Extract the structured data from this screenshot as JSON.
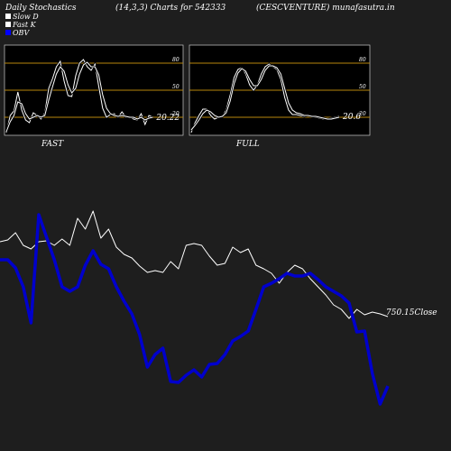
{
  "header": {
    "left": "Daily Stochastics",
    "center": "(14,3,3) Charts for 542333",
    "right": "(CESCVENTURE) munafasutra.in"
  },
  "legend": [
    {
      "label": "Slow  D",
      "color": "#ffffff"
    },
    {
      "label": "Fast K",
      "color": "#ffffff"
    },
    {
      "label": "OBV",
      "color": "#0000ff"
    }
  ],
  "colors": {
    "background": "#1e1e1e",
    "panel_bg": "#000000",
    "band_lines": "#b8860b",
    "price_line": "#ffffff",
    "obv_line": "#0000cc"
  },
  "chart_data": [
    {
      "type": "line",
      "panel_label": "FAST",
      "ylim": [
        0,
        100
      ],
      "bands": [
        20,
        50,
        80
      ],
      "band_labels": [
        "80",
        "50",
        "20"
      ],
      "last_value_label": "20.22",
      "series": [
        {
          "values": [
            3,
            22,
            27,
            48,
            28,
            17,
            14,
            25,
            22,
            18,
            25,
            52,
            63,
            76,
            82,
            60,
            44,
            43,
            66,
            80,
            84,
            76,
            72,
            79,
            54,
            30,
            20,
            23,
            24,
            20,
            26,
            20,
            21,
            18,
            17,
            24,
            12,
            22,
            20
          ]
        },
        {
          "values": [
            4,
            15,
            22,
            37,
            35,
            24,
            18,
            20,
            22,
            20,
            22,
            39,
            54,
            68,
            76,
            71,
            56,
            47,
            52,
            68,
            78,
            81,
            76,
            76,
            67,
            45,
            30,
            24,
            22,
            21,
            22,
            21,
            20,
            20,
            18,
            20,
            17,
            19,
            20
          ]
        }
      ]
    },
    {
      "type": "line",
      "panel_label": "FULL",
      "ylim": [
        0,
        100
      ],
      "bands": [
        20,
        50,
        80
      ],
      "band_labels": [
        "80",
        "50",
        "20"
      ],
      "last_value_label": "20.6",
      "series": [
        {
          "values": [
            3,
            14,
            22,
            29,
            29,
            22,
            18,
            20,
            21,
            28,
            45,
            64,
            73,
            75,
            68,
            56,
            50,
            56,
            68,
            76,
            79,
            76,
            73,
            62,
            42,
            28,
            23,
            23,
            22,
            21,
            22,
            21,
            20,
            19,
            18,
            18,
            19,
            20,
            21
          ]
        },
        {
          "values": [
            6,
            11,
            17,
            24,
            28,
            26,
            22,
            20,
            21,
            25,
            38,
            57,
            69,
            74,
            71,
            62,
            55,
            55,
            62,
            72,
            77,
            77,
            75,
            68,
            52,
            36,
            28,
            25,
            24,
            22,
            22,
            21,
            21,
            20,
            19,
            18,
            18,
            19,
            20
          ]
        }
      ]
    },
    {
      "type": "line",
      "ylim": [
        0,
        500
      ],
      "series": [
        {
          "name": "Close",
          "values": [
            268,
            266,
            258,
            272,
            276,
            268,
            267,
            272,
            265,
            272,
            242,
            254,
            234,
            264,
            254,
            274,
            282,
            286,
            295,
            302,
            300,
            302,
            290,
            298,
            272,
            270,
            272,
            284,
            294,
            292,
            274,
            280,
            276,
            294,
            298,
            303,
            314,
            302,
            294,
            298,
            309,
            318,
            327,
            338,
            343,
            353,
            343,
            349,
            346,
            348,
            351
          ]
        },
        {
          "name": "OBV",
          "values": [
            288,
            288,
            297,
            318,
            358,
            238,
            263,
            288,
            318,
            323,
            318,
            294,
            278,
            293,
            298,
            318,
            334,
            348,
            371,
            407,
            393,
            386,
            423,
            424,
            416,
            410,
            418,
            404,
            403,
            393,
            378,
            373,
            367,
            343,
            318,
            314,
            309,
            303,
            306,
            306,
            303,
            310,
            318,
            323,
            328,
            336,
            368,
            367,
            414,
            448,
            428
          ]
        }
      ],
      "last_value_label": "750.15Close"
    }
  ]
}
